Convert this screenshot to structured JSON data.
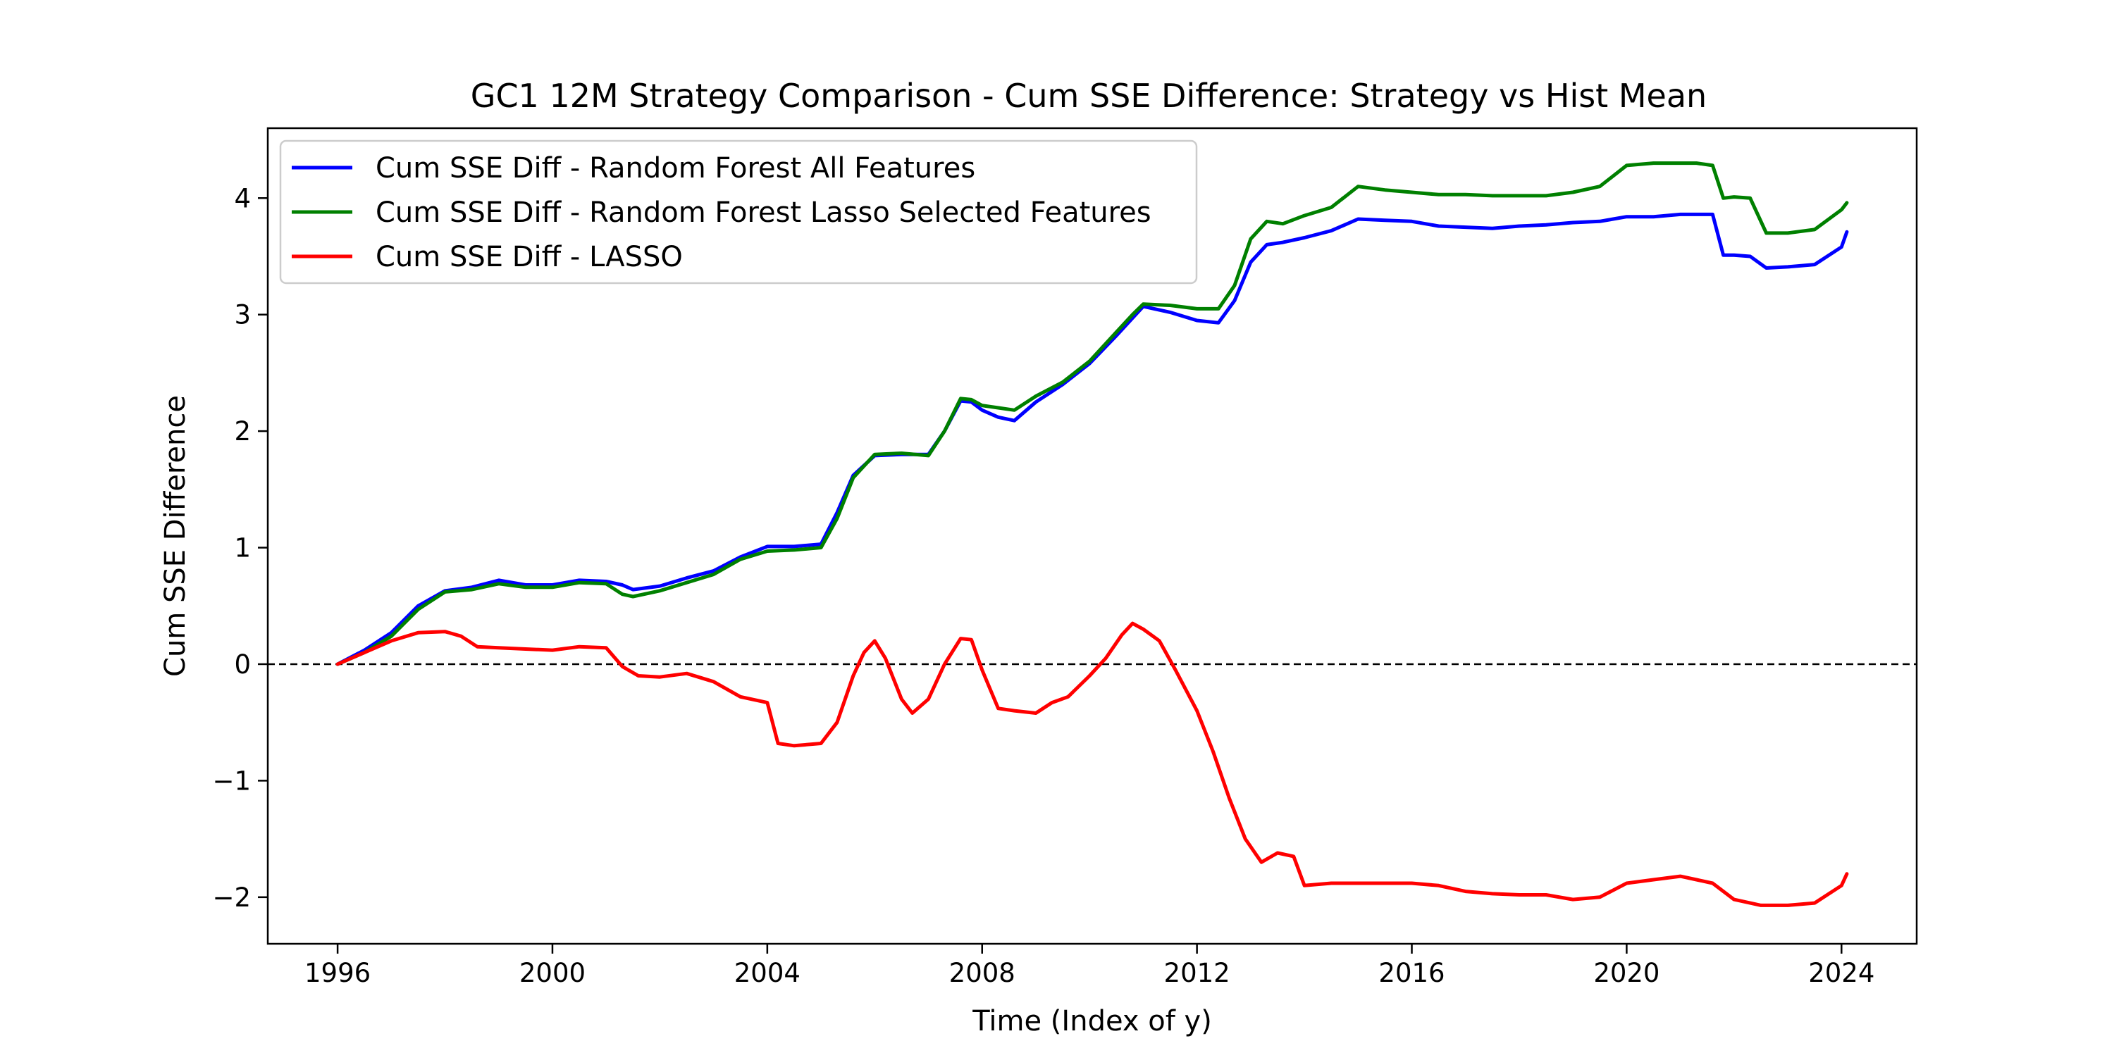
{
  "chart_data": {
    "type": "line",
    "title": "GC1 12M Strategy Comparison - Cum SSE Difference: Strategy vs Hist Mean",
    "xlabel": "Time (Index of y)",
    "ylabel": "Cum SSE Difference",
    "xlim": [
      1994.7,
      2025.4
    ],
    "ylim": [
      -2.4,
      4.6
    ],
    "xticks": [
      1996,
      2000,
      2004,
      2008,
      2012,
      2016,
      2020,
      2024
    ],
    "xtick_labels": [
      "1996",
      "2000",
      "2004",
      "2008",
      "2012",
      "2016",
      "2020",
      "2024"
    ],
    "yticks": [
      -2,
      -1,
      0,
      1,
      2,
      3,
      4
    ],
    "ytick_labels": [
      "−2",
      "−1",
      "0",
      "1",
      "2",
      "3",
      "4"
    ],
    "reference_line": {
      "y": 0,
      "style": "dashed",
      "color": "#000000"
    },
    "legend": {
      "location": "upper-left"
    },
    "grid": false,
    "series": [
      {
        "name": "Cum SSE Diff - Random Forest All Features",
        "color": "#0000ff",
        "x": [
          1996.0,
          1996.5,
          1997.0,
          1997.5,
          1998.0,
          1998.5,
          1999.0,
          1999.5,
          2000.0,
          2000.5,
          2001.0,
          2001.3,
          2001.5,
          2002.0,
          2002.5,
          2003.0,
          2003.5,
          2004.0,
          2004.5,
          2005.0,
          2005.3,
          2005.6,
          2006.0,
          2006.5,
          2007.0,
          2007.3,
          2007.6,
          2007.8,
          2008.0,
          2008.3,
          2008.6,
          2009.0,
          2009.5,
          2010.0,
          2010.5,
          2010.8,
          2011.0,
          2011.5,
          2012.0,
          2012.4,
          2012.7,
          2013.0,
          2013.3,
          2013.6,
          2014.0,
          2014.5,
          2015.0,
          2015.5,
          2016.0,
          2016.5,
          2017.0,
          2017.5,
          2018.0,
          2018.5,
          2019.0,
          2019.5,
          2020.0,
          2020.5,
          2021.0,
          2021.3,
          2021.6,
          2021.8,
          2022.0,
          2022.3,
          2022.6,
          2023.0,
          2023.5,
          2024.0,
          2024.1
        ],
        "y": [
          0.0,
          0.12,
          0.27,
          0.5,
          0.63,
          0.66,
          0.72,
          0.68,
          0.68,
          0.72,
          0.71,
          0.68,
          0.64,
          0.67,
          0.74,
          0.8,
          0.92,
          1.01,
          1.01,
          1.03,
          1.3,
          1.62,
          1.79,
          1.8,
          1.8,
          2.0,
          2.26,
          2.25,
          2.18,
          2.12,
          2.09,
          2.25,
          2.4,
          2.58,
          2.82,
          2.97,
          3.07,
          3.02,
          2.95,
          2.93,
          3.12,
          3.45,
          3.6,
          3.62,
          3.66,
          3.72,
          3.82,
          3.81,
          3.8,
          3.76,
          3.75,
          3.74,
          3.76,
          3.77,
          3.79,
          3.8,
          3.84,
          3.84,
          3.86,
          3.86,
          3.86,
          3.51,
          3.51,
          3.5,
          3.4,
          3.41,
          3.43,
          3.58,
          3.71
        ]
      },
      {
        "name": "Cum SSE Diff - Random Forest Lasso Selected Features",
        "color": "#008000",
        "x": [
          1996.0,
          1996.5,
          1997.0,
          1997.5,
          1998.0,
          1998.5,
          1999.0,
          1999.5,
          2000.0,
          2000.5,
          2001.0,
          2001.3,
          2001.5,
          2002.0,
          2002.5,
          2003.0,
          2003.5,
          2004.0,
          2004.5,
          2005.0,
          2005.3,
          2005.6,
          2006.0,
          2006.5,
          2007.0,
          2007.3,
          2007.6,
          2007.8,
          2008.0,
          2008.3,
          2008.6,
          2009.0,
          2009.5,
          2010.0,
          2010.5,
          2010.8,
          2011.0,
          2011.5,
          2012.0,
          2012.4,
          2012.7,
          2013.0,
          2013.3,
          2013.6,
          2014.0,
          2014.5,
          2015.0,
          2015.5,
          2016.0,
          2016.5,
          2017.0,
          2017.5,
          2018.0,
          2018.5,
          2019.0,
          2019.5,
          2020.0,
          2020.5,
          2021.0,
          2021.3,
          2021.6,
          2021.8,
          2022.0,
          2022.3,
          2022.6,
          2023.0,
          2023.5,
          2024.0,
          2024.1
        ],
        "y": [
          0.0,
          0.1,
          0.24,
          0.47,
          0.62,
          0.64,
          0.69,
          0.66,
          0.66,
          0.7,
          0.69,
          0.6,
          0.58,
          0.63,
          0.7,
          0.77,
          0.9,
          0.97,
          0.98,
          1.0,
          1.25,
          1.6,
          1.8,
          1.81,
          1.79,
          2.0,
          2.28,
          2.27,
          2.22,
          2.2,
          2.18,
          2.3,
          2.42,
          2.6,
          2.85,
          3.0,
          3.09,
          3.08,
          3.05,
          3.05,
          3.25,
          3.65,
          3.8,
          3.78,
          3.85,
          3.92,
          4.1,
          4.07,
          4.05,
          4.03,
          4.03,
          4.02,
          4.02,
          4.02,
          4.05,
          4.1,
          4.28,
          4.3,
          4.3,
          4.3,
          4.28,
          4.0,
          4.01,
          4.0,
          3.7,
          3.7,
          3.73,
          3.9,
          3.96
        ]
      },
      {
        "name": "Cum SSE Diff - LASSO",
        "color": "#ff0000",
        "x": [
          1996.0,
          1996.5,
          1997.0,
          1997.5,
          1998.0,
          1998.3,
          1998.6,
          1999.0,
          1999.5,
          2000.0,
          2000.5,
          2001.0,
          2001.3,
          2001.6,
          2002.0,
          2002.5,
          2003.0,
          2003.5,
          2004.0,
          2004.2,
          2004.5,
          2005.0,
          2005.3,
          2005.6,
          2005.8,
          2006.0,
          2006.2,
          2006.5,
          2006.7,
          2007.0,
          2007.3,
          2007.6,
          2007.8,
          2008.0,
          2008.3,
          2008.6,
          2009.0,
          2009.3,
          2009.6,
          2010.0,
          2010.3,
          2010.6,
          2010.8,
          2011.0,
          2011.3,
          2011.6,
          2012.0,
          2012.3,
          2012.6,
          2012.9,
          2013.2,
          2013.5,
          2013.8,
          2014.0,
          2014.5,
          2015.0,
          2015.5,
          2016.0,
          2016.5,
          2017.0,
          2017.5,
          2018.0,
          2018.5,
          2019.0,
          2019.5,
          2020.0,
          2020.5,
          2021.0,
          2021.3,
          2021.6,
          2022.0,
          2022.5,
          2023.0,
          2023.5,
          2024.0,
          2024.1
        ],
        "y": [
          0.0,
          0.1,
          0.2,
          0.27,
          0.28,
          0.24,
          0.15,
          0.14,
          0.13,
          0.12,
          0.15,
          0.14,
          -0.02,
          -0.1,
          -0.11,
          -0.08,
          -0.15,
          -0.28,
          -0.33,
          -0.68,
          -0.7,
          -0.68,
          -0.5,
          -0.1,
          0.1,
          0.2,
          0.05,
          -0.3,
          -0.42,
          -0.3,
          0.0,
          0.22,
          0.21,
          -0.05,
          -0.38,
          -0.4,
          -0.42,
          -0.33,
          -0.28,
          -0.1,
          0.05,
          0.25,
          0.35,
          0.3,
          0.2,
          -0.05,
          -0.4,
          -0.75,
          -1.15,
          -1.5,
          -1.7,
          -1.62,
          -1.65,
          -1.9,
          -1.88,
          -1.88,
          -1.88,
          -1.88,
          -1.9,
          -1.95,
          -1.97,
          -1.98,
          -1.98,
          -2.02,
          -2.0,
          -1.88,
          -1.85,
          -1.82,
          -1.85,
          -1.88,
          -2.02,
          -2.07,
          -2.07,
          -2.05,
          -1.9,
          -1.8
        ]
      }
    ]
  }
}
